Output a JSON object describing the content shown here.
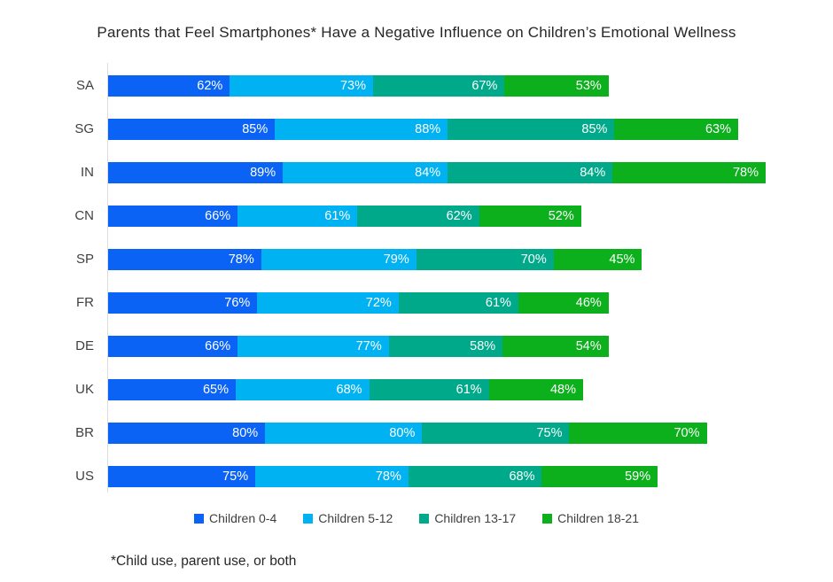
{
  "chart_data": {
    "type": "bar",
    "orientation": "horizontal",
    "stacked": true,
    "title": "Parents that Feel Smartphones* Have a Negative Influence on Children’s Emotional Wellness",
    "footnote": "*Child use, parent use, or both",
    "categories": [
      "SA",
      "SG",
      "IN",
      "CN",
      "SP",
      "FR",
      "DE",
      "UK",
      "BR",
      "US"
    ],
    "series": [
      {
        "name": "Children 0-4",
        "color": "#0b63f6",
        "values": [
          62,
          85,
          89,
          66,
          78,
          76,
          66,
          65,
          80,
          75
        ]
      },
      {
        "name": "Children 5-12",
        "color": "#00b2f2",
        "values": [
          73,
          88,
          84,
          61,
          79,
          72,
          77,
          68,
          80,
          78
        ]
      },
      {
        "name": "Children 13-17",
        "color": "#00a98a",
        "values": [
          67,
          85,
          84,
          62,
          70,
          61,
          58,
          61,
          75,
          68
        ]
      },
      {
        "name": "Children 18-21",
        "color": "#0cb01c",
        "values": [
          53,
          63,
          78,
          52,
          45,
          46,
          54,
          48,
          70,
          59
        ]
      }
    ],
    "value_suffix": "%",
    "value_labels_inside_bars": true,
    "legend_position": "bottom",
    "grid": false,
    "x_axis_ticks_visible": false
  }
}
